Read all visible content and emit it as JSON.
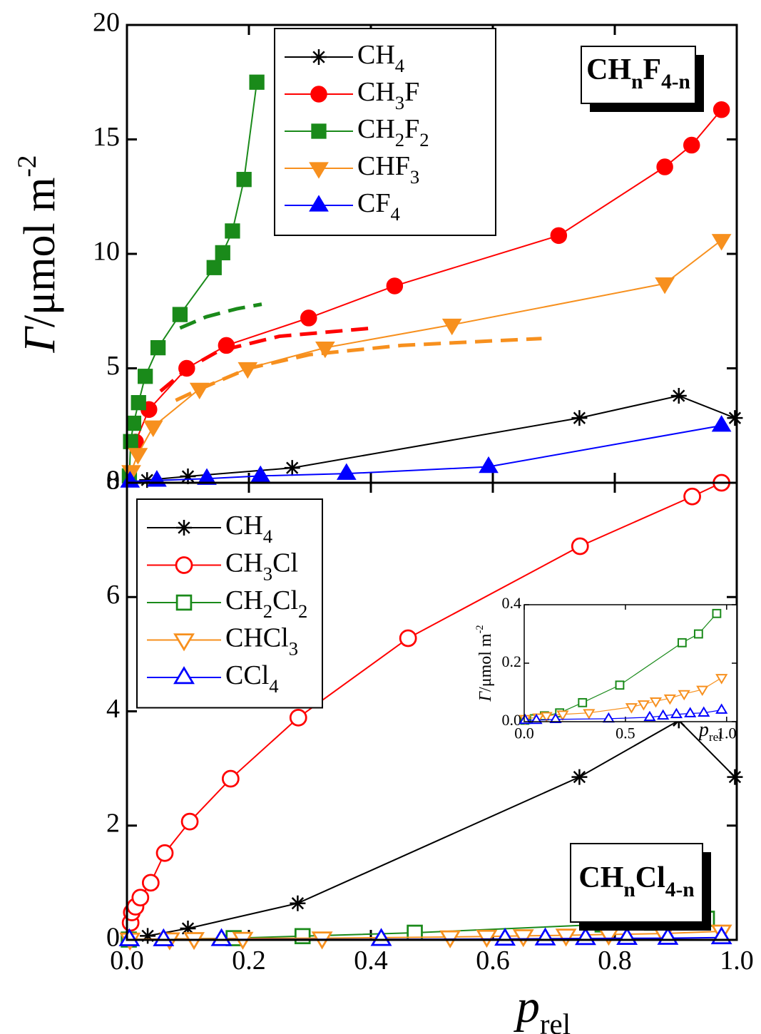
{
  "chart_data": [
    {
      "type": "line",
      "ylabel": {
        "symbol": "Γ",
        "unit": "/μmol m",
        "exponent": "-2"
      },
      "label": "CHnF4-n",
      "legend": "upper center",
      "xlim": [
        0,
        1
      ],
      "ylim": [
        0,
        20
      ],
      "yticks": [
        0,
        5,
        10,
        15,
        20
      ],
      "series": [
        {
          "name": "CH4",
          "color": "#000000",
          "marker": "star",
          "filled": true,
          "x": [
            0.033,
            0.1,
            0.271,
            0.742,
            0.905,
            0.997
          ],
          "values": [
            0.12,
            0.28,
            0.65,
            2.83,
            3.8,
            2.83
          ]
        },
        {
          "name": "CH3F",
          "color": "#ff0000",
          "marker": "circle",
          "filled": true,
          "x": [
            0.014,
            0.036,
            0.098,
            0.163,
            0.298,
            0.439,
            0.708,
            0.882,
            0.926,
            0.975
          ],
          "values": [
            1.78,
            3.2,
            5.0,
            6.0,
            7.2,
            8.6,
            10.8,
            13.8,
            14.75,
            16.3
          ]
        },
        {
          "name": "CH2F2",
          "color": "#1a8a1a",
          "marker": "square",
          "filled": true,
          "x": [
            0.004,
            0.006,
            0.011,
            0.019,
            0.03,
            0.051,
            0.087,
            0.143,
            0.157,
            0.173,
            0.192,
            0.213
          ],
          "values": [
            0.3,
            1.8,
            2.6,
            3.5,
            4.65,
            5.9,
            7.35,
            9.4,
            10.05,
            11.0,
            13.25,
            17.5
          ]
        },
        {
          "name": "CHF3",
          "color": "#f7901e",
          "marker": "triangle-down",
          "filled": true,
          "x": [
            0.007,
            0.018,
            0.043,
            0.119,
            0.198,
            0.325,
            0.533,
            0.882,
            0.975
          ],
          "values": [
            0.5,
            1.25,
            2.45,
            4.1,
            5.0,
            5.9,
            6.9,
            8.7,
            10.6
          ]
        },
        {
          "name": "CF4",
          "color": "#0000ff",
          "marker": "triangle-up",
          "filled": true,
          "x": [
            0.005,
            0.049,
            0.131,
            0.219,
            0.36,
            0.593,
            0.975
          ],
          "values": [
            0.06,
            0.1,
            0.18,
            0.3,
            0.4,
            0.7,
            2.5
          ]
        }
      ],
      "fits": [
        {
          "color": "#1a8a1a",
          "x": [
            0.087,
            0.13,
            0.18,
            0.221
          ],
          "values": [
            6.76,
            7.25,
            7.6,
            7.8
          ]
        },
        {
          "color": "#ff0000",
          "x": [
            0.055,
            0.1,
            0.15,
            0.25,
            0.4
          ],
          "values": [
            4.0,
            5.0,
            5.75,
            6.4,
            6.75
          ]
        },
        {
          "color": "#f7901e",
          "x": [
            0.08,
            0.12,
            0.2,
            0.3,
            0.45,
            0.6,
            0.68
          ],
          "values": [
            3.6,
            4.1,
            5.0,
            5.6,
            6.0,
            6.2,
            6.3
          ]
        }
      ]
    },
    {
      "type": "line",
      "xlabel": {
        "symbol": "p",
        "subscript": "rel"
      },
      "label": "CHnCl4-n",
      "legend": "upper left",
      "xlim": [
        0,
        1
      ],
      "ylim": [
        0,
        8
      ],
      "xticks": [
        {
          "value": 0,
          "label": "0.0"
        },
        0.2,
        0.4,
        0.6,
        0.8,
        {
          "value": 1,
          "label": "1.0"
        }
      ],
      "yticks": [
        0,
        2,
        4,
        6,
        8
      ],
      "series": [
        {
          "name": "CH4",
          "color": "#000000",
          "marker": "star",
          "filled": true,
          "x": [
            0.034,
            0.1,
            0.28,
            0.742,
            0.905,
            0.997
          ],
          "values": [
            0.07,
            0.2,
            0.64,
            2.85,
            3.84,
            2.85
          ]
        },
        {
          "name": "CH3Cl",
          "color": "#ff0000",
          "marker": "circle",
          "filled": false,
          "x": [
            0.006,
            0.008,
            0.014,
            0.022,
            0.039,
            0.062,
            0.103,
            0.17,
            0.281,
            0.461,
            0.743,
            0.927,
            0.975
          ],
          "values": [
            0.3,
            0.48,
            0.58,
            0.74,
            1.0,
            1.52,
            2.07,
            2.82,
            3.89,
            5.28,
            6.89,
            7.76,
            8.0
          ]
        },
        {
          "name": "CH2Cl2",
          "color": "#1a8a1a",
          "marker": "square",
          "filled": false,
          "x": [
            0.003,
            0.175,
            0.288,
            0.472,
            0.78,
            0.861,
            0.951
          ],
          "values": [
            0.005,
            0.03,
            0.065,
            0.125,
            0.27,
            0.3,
            0.37
          ]
        },
        {
          "name": "CHCl3",
          "color": "#f7901e",
          "marker": "triangle-down",
          "filled": false,
          "x": [
            0.005,
            0.07,
            0.11,
            0.19,
            0.32,
            0.53,
            0.59,
            0.65,
            0.72,
            0.79,
            0.88,
            0.975
          ],
          "values": [
            0.01,
            0.015,
            0.02,
            0.025,
            0.03,
            0.05,
            0.06,
            0.07,
            0.08,
            0.095,
            0.11,
            0.15
          ]
        },
        {
          "name": "CCl4",
          "color": "#0000ff",
          "marker": "triangle-up",
          "filled": false,
          "x": [
            0.004,
            0.06,
            0.155,
            0.417,
            0.62,
            0.686,
            0.752,
            0.82,
            0.887,
            0.975
          ],
          "values": [
            0.005,
            0.005,
            0.008,
            0.01,
            0.015,
            0.02,
            0.025,
            0.028,
            0.03,
            0.04
          ]
        }
      ]
    },
    {
      "type": "line",
      "ylabel": {
        "symbol": "Γ",
        "unit": "/μmol m",
        "exponent": "-2"
      },
      "xlabel": {
        "symbol": "p",
        "subscript": "rel"
      },
      "xlim": [
        0,
        1.05
      ],
      "ylim": [
        0,
        0.4
      ],
      "xticks": [
        {
          "value": 0,
          "label": "0.0"
        },
        0.5,
        {
          "value": 1,
          "label": "1.0"
        }
      ],
      "yticks": [
        {
          "value": 0,
          "label": "0.0"
        },
        0.2,
        0.4
      ],
      "series": [
        {
          "color": "#1a8a1a",
          "marker": "square",
          "filled": false,
          "x": [
            0.003,
            0.05,
            0.1,
            0.175,
            0.288,
            0.472,
            0.78,
            0.861,
            0.951
          ],
          "values": [
            0.005,
            0.01,
            0.02,
            0.03,
            0.065,
            0.125,
            0.27,
            0.3,
            0.37
          ]
        },
        {
          "color": "#f7901e",
          "marker": "triangle-down",
          "filled": false,
          "x": [
            0.005,
            0.07,
            0.11,
            0.19,
            0.32,
            0.53,
            0.59,
            0.65,
            0.72,
            0.79,
            0.88,
            0.975
          ],
          "values": [
            0.01,
            0.015,
            0.02,
            0.025,
            0.03,
            0.05,
            0.06,
            0.07,
            0.08,
            0.095,
            0.11,
            0.15
          ]
        },
        {
          "color": "#0000ff",
          "marker": "triangle-up",
          "filled": false,
          "x": [
            0.004,
            0.06,
            0.155,
            0.417,
            0.62,
            0.686,
            0.752,
            0.82,
            0.887,
            0.975
          ],
          "values": [
            0.005,
            0.005,
            0.008,
            0.01,
            0.015,
            0.02,
            0.025,
            0.028,
            0.03,
            0.04
          ]
        }
      ]
    }
  ]
}
